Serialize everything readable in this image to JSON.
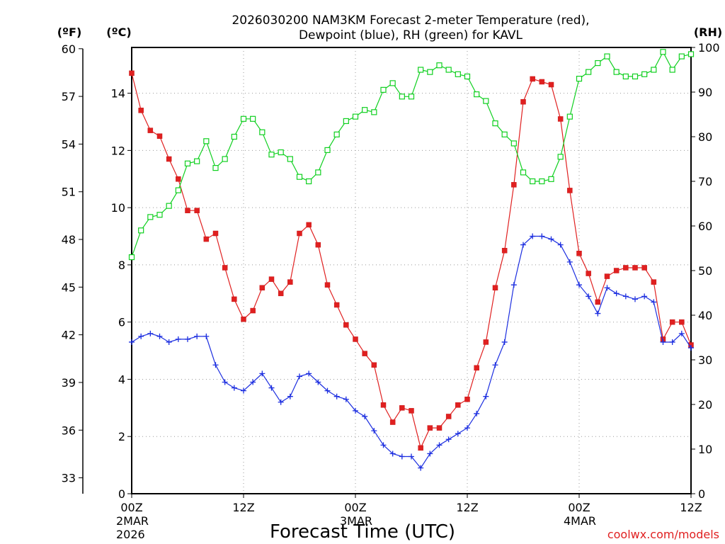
{
  "chart_data": {
    "type": "line",
    "title_line1": "2026030200 NAM3KM Forecast 2-meter Temperature (red),",
    "title_line2": "Dewpoint (blue), RH (green) for KAVL",
    "xlabel": "Forecast Time (UTC)",
    "credit": "coolwx.com/models",
    "units": {
      "fahrenheit": "(ºF)",
      "celsius": "(ºC)",
      "rh": "(RH)"
    },
    "y_left_celsius": {
      "ylim": [
        0,
        15.6
      ],
      "ticks": [
        "0",
        "2",
        "4",
        "6",
        "8",
        "10",
        "12",
        "14"
      ]
    },
    "y_left_fahrenheit": {
      "ylim": [
        32,
        60.08
      ],
      "ticks": [
        "33",
        "36",
        "39",
        "42",
        "45",
        "48",
        "51",
        "54",
        "57",
        "60"
      ]
    },
    "y_right_rh": {
      "ylim": [
        0,
        100
      ],
      "ticks": [
        "0",
        "10",
        "20",
        "30",
        "40",
        "50",
        "60",
        "70",
        "80",
        "90",
        "100"
      ]
    },
    "x_range_hours": [
      0,
      60
    ],
    "x_ticks": [
      {
        "hour": 0,
        "label": "00Z",
        "date": "2MAR",
        "year": "2026"
      },
      {
        "hour": 12,
        "label": "12Z",
        "date": "",
        "year": ""
      },
      {
        "hour": 24,
        "label": "00Z",
        "date": "3MAR",
        "year": ""
      },
      {
        "hour": 36,
        "label": "12Z",
        "date": "",
        "year": ""
      },
      {
        "hour": 48,
        "label": "00Z",
        "date": "4MAR",
        "year": ""
      },
      {
        "hour": 60,
        "label": "12Z",
        "date": "",
        "year": ""
      }
    ],
    "series": [
      {
        "name": "Temperature",
        "unit": "C",
        "color": "#e02020",
        "marker": "filled-square",
        "values": [
          14.7,
          13.4,
          12.7,
          12.5,
          11.7,
          11.0,
          9.9,
          9.9,
          8.9,
          9.1,
          7.9,
          6.8,
          6.1,
          6.4,
          7.2,
          7.5,
          7.0,
          7.4,
          9.1,
          9.4,
          8.7,
          7.3,
          6.6,
          5.9,
          5.4,
          4.9,
          4.5,
          3.1,
          2.5,
          3.0,
          2.9,
          1.6,
          2.3,
          2.3,
          2.7,
          3.1,
          3.3,
          4.4,
          5.3,
          7.2,
          8.5,
          10.8,
          13.7,
          14.5,
          14.4,
          14.3,
          13.1,
          10.6,
          8.4,
          7.7,
          6.7,
          7.6,
          7.8,
          7.9,
          7.9,
          7.9,
          7.4,
          5.4,
          6.0,
          6.0,
          5.2
        ]
      },
      {
        "name": "Dewpoint",
        "unit": "C",
        "color": "#1c2ee0",
        "marker": "plus",
        "values": [
          5.3,
          5.5,
          5.6,
          5.5,
          5.3,
          5.4,
          5.4,
          5.5,
          5.5,
          4.5,
          3.9,
          3.7,
          3.6,
          3.9,
          4.2,
          3.7,
          3.2,
          3.4,
          4.1,
          4.2,
          3.9,
          3.6,
          3.4,
          3.3,
          2.9,
          2.7,
          2.2,
          1.7,
          1.4,
          1.3,
          1.3,
          0.9,
          1.4,
          1.7,
          1.9,
          2.1,
          2.3,
          2.8,
          3.4,
          4.5,
          5.3,
          7.3,
          8.7,
          9.0,
          9.0,
          8.9,
          8.7,
          8.1,
          7.3,
          6.9,
          6.3,
          7.2,
          7.0,
          6.9,
          6.8,
          6.9,
          6.7,
          5.3,
          5.3,
          5.6,
          5.1
        ]
      },
      {
        "name": "RH",
        "unit": "%",
        "color": "#10d020",
        "marker": "open-square",
        "values": [
          53,
          59,
          62,
          62.5,
          64.5,
          68,
          74,
          74.5,
          79,
          73,
          75,
          80,
          84,
          84,
          81,
          76,
          76.5,
          75,
          71,
          70,
          72,
          77,
          80.5,
          83.5,
          84.5,
          86,
          85.5,
          90.5,
          92,
          89,
          89,
          95,
          94.5,
          96,
          95,
          94,
          93.5,
          89.5,
          88,
          83,
          80.5,
          78.5,
          72,
          70,
          70,
          70.5,
          75.5,
          84.5,
          93,
          94.5,
          96.5,
          98,
          94.5,
          93.5,
          93.5,
          94,
          95,
          99,
          95,
          98,
          98.5
        ]
      }
    ]
  }
}
